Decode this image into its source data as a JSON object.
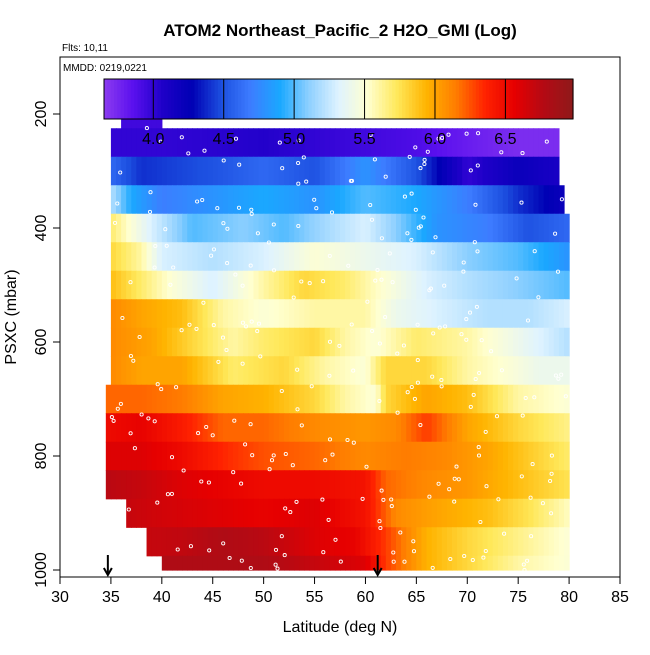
{
  "chart_data": {
    "type": "heatmap",
    "title": "ATOM2 Northeast_Pacific_2 H2O_GMI (Log)",
    "annotations": {
      "flights": "Flts: 10,11",
      "dates": "MMDD: 0219,0221"
    },
    "xlabel": "Latitude (deg N)",
    "ylabel": "PSXC (mbar)",
    "x_range": [
      30,
      85
    ],
    "x_ticks": [
      30,
      35,
      40,
      45,
      50,
      55,
      60,
      65,
      70,
      75,
      80,
      85
    ],
    "y_range": [
      1000,
      100
    ],
    "y_ticks": [
      200,
      400,
      600,
      800,
      1000
    ],
    "colorbar": {
      "range": [
        3.65,
        6.98
      ],
      "ticks": [
        4.0,
        4.5,
        5.0,
        5.5,
        6.0,
        6.5
      ],
      "tick_labels": [
        "4.0",
        "4.5",
        "5.0",
        "5.5",
        "6.0",
        "6.5"
      ]
    },
    "markers": [
      {
        "label": "down arrow",
        "latitude": 34.7
      },
      {
        "label": "down arrow",
        "latitude": 61.2
      }
    ],
    "pressure_bins": [
      {
        "p_min": 175,
        "p_max": 225,
        "lat_start": 36.0,
        "lat_end": 40.0,
        "nodes": [
          [
            36.0,
            3.95
          ],
          [
            40.0,
            3.95
          ]
        ]
      },
      {
        "p_min": 225,
        "p_max": 275,
        "lat_start": 35.0,
        "lat_end": 79.0,
        "nodes": [
          [
            35,
            4.0
          ],
          [
            40,
            4.0
          ],
          [
            50,
            4.05
          ],
          [
            60,
            3.95
          ],
          [
            65,
            3.9
          ],
          [
            70,
            3.8
          ],
          [
            75,
            3.72
          ],
          [
            79,
            3.72
          ]
        ]
      },
      {
        "p_min": 275,
        "p_max": 325,
        "lat_start": 35.0,
        "lat_end": 79.0,
        "nodes": [
          [
            35,
            4.6
          ],
          [
            38,
            4.4
          ],
          [
            45,
            4.5
          ],
          [
            50,
            4.6
          ],
          [
            55,
            4.5
          ],
          [
            60,
            4.8
          ],
          [
            65,
            4.5
          ],
          [
            70,
            4.0
          ],
          [
            75,
            4.2
          ],
          [
            79,
            4.1
          ]
        ]
      },
      {
        "p_min": 325,
        "p_max": 375,
        "lat_start": 35.0,
        "lat_end": 79.5,
        "nodes": [
          [
            35,
            5.2
          ],
          [
            37,
            4.9
          ],
          [
            40,
            4.7
          ],
          [
            50,
            4.9
          ],
          [
            55,
            4.8
          ],
          [
            60,
            5.0
          ],
          [
            65,
            4.9
          ],
          [
            70,
            4.7
          ],
          [
            75,
            4.4
          ],
          [
            79.5,
            4.2
          ]
        ]
      },
      {
        "p_min": 375,
        "p_max": 425,
        "lat_start": 35.0,
        "lat_end": 80.0,
        "nodes": [
          [
            35,
            5.7
          ],
          [
            37,
            5.5
          ],
          [
            39,
            5.3
          ],
          [
            43,
            5.0
          ],
          [
            48,
            5.1
          ],
          [
            52,
            5.0
          ],
          [
            57,
            5.2
          ],
          [
            60,
            5.3
          ],
          [
            63,
            5.1
          ],
          [
            67,
            4.8
          ],
          [
            72,
            4.7
          ],
          [
            76,
            4.5
          ],
          [
            80,
            4.6
          ]
        ]
      },
      {
        "p_min": 425,
        "p_max": 475,
        "lat_start": 35.0,
        "lat_end": 80.0,
        "nodes": [
          [
            35,
            5.8
          ],
          [
            38,
            5.6
          ],
          [
            40,
            5.3
          ],
          [
            45,
            5.2
          ],
          [
            50,
            5.3
          ],
          [
            55,
            5.5
          ],
          [
            60,
            5.4
          ],
          [
            65,
            5.3
          ],
          [
            70,
            5.1
          ],
          [
            75,
            5.0
          ],
          [
            80,
            4.8
          ]
        ]
      },
      {
        "p_min": 475,
        "p_max": 525,
        "lat_start": 35.0,
        "lat_end": 80.0,
        "nodes": [
          [
            35,
            5.9
          ],
          [
            38,
            5.7
          ],
          [
            41,
            5.5
          ],
          [
            45,
            5.3
          ],
          [
            50,
            5.6
          ],
          [
            54,
            5.8
          ],
          [
            58,
            5.7
          ],
          [
            62,
            5.5
          ],
          [
            66,
            5.3
          ],
          [
            70,
            5.2
          ],
          [
            75,
            5.1
          ],
          [
            80,
            5.0
          ]
        ]
      },
      {
        "p_min": 525,
        "p_max": 575,
        "lat_start": 35.0,
        "lat_end": 80.0,
        "nodes": [
          [
            35,
            6.1
          ],
          [
            38,
            6.0
          ],
          [
            42,
            5.9
          ],
          [
            46,
            5.6
          ],
          [
            50,
            5.5
          ],
          [
            55,
            5.6
          ],
          [
            60,
            5.6
          ],
          [
            63,
            5.4
          ],
          [
            67,
            5.3
          ],
          [
            72,
            5.2
          ],
          [
            76,
            5.2
          ],
          [
            80,
            5.3
          ]
        ]
      },
      {
        "p_min": 575,
        "p_max": 625,
        "lat_start": 35.0,
        "lat_end": 80.0,
        "nodes": [
          [
            35,
            6.1
          ],
          [
            39,
            6.0
          ],
          [
            43,
            5.8
          ],
          [
            47,
            5.6
          ],
          [
            50,
            5.7
          ],
          [
            55,
            5.8
          ],
          [
            58,
            5.6
          ],
          [
            61,
            5.5
          ],
          [
            65,
            5.7
          ],
          [
            70,
            5.6
          ],
          [
            75,
            5.4
          ],
          [
            80,
            5.2
          ]
        ]
      },
      {
        "p_min": 625,
        "p_max": 675,
        "lat_start": 35.0,
        "lat_end": 80.0,
        "nodes": [
          [
            35,
            6.1
          ],
          [
            38,
            6.0
          ],
          [
            42,
            6.0
          ],
          [
            47,
            5.7
          ],
          [
            52,
            5.8
          ],
          [
            56,
            5.6
          ],
          [
            60,
            5.5
          ],
          [
            62,
            5.8
          ],
          [
            66,
            5.8
          ],
          [
            70,
            5.6
          ],
          [
            74,
            5.5
          ],
          [
            77,
            5.4
          ],
          [
            80,
            5.4
          ]
        ]
      },
      {
        "p_min": 675,
        "p_max": 725,
        "lat_start": 34.5,
        "lat_end": 80.0,
        "nodes": [
          [
            34.5,
            6.2
          ],
          [
            38,
            6.2
          ],
          [
            42,
            6.15
          ],
          [
            46,
            6.0
          ],
          [
            50,
            5.95
          ],
          [
            55,
            5.8
          ],
          [
            58,
            5.6
          ],
          [
            61,
            5.5
          ],
          [
            62,
            5.8
          ],
          [
            66,
            6.0
          ],
          [
            70,
            5.9
          ],
          [
            75,
            5.6
          ],
          [
            80,
            5.5
          ]
        ]
      },
      {
        "p_min": 725,
        "p_max": 775,
        "lat_start": 34.5,
        "lat_end": 80.0,
        "nodes": [
          [
            34.5,
            6.5
          ],
          [
            38,
            6.55
          ],
          [
            42,
            6.4
          ],
          [
            46,
            6.2
          ],
          [
            50,
            6.2
          ],
          [
            55,
            6.1
          ],
          [
            60,
            6.05
          ],
          [
            63,
            6.1
          ],
          [
            66,
            6.3
          ],
          [
            70,
            6.0
          ],
          [
            75,
            5.8
          ],
          [
            80,
            5.65
          ]
        ]
      },
      {
        "p_min": 775,
        "p_max": 825,
        "lat_start": 34.5,
        "lat_end": 80.0,
        "nodes": [
          [
            34.5,
            6.6
          ],
          [
            38,
            6.6
          ],
          [
            42,
            6.5
          ],
          [
            46,
            6.35
          ],
          [
            50,
            6.25
          ],
          [
            55,
            6.2
          ],
          [
            60,
            6.1
          ],
          [
            64,
            6.15
          ],
          [
            68,
            6.1
          ],
          [
            72,
            6.0
          ],
          [
            76,
            5.85
          ],
          [
            80,
            5.7
          ]
        ]
      },
      {
        "p_min": 825,
        "p_max": 875,
        "lat_start": 34.5,
        "lat_end": 80.0,
        "nodes": [
          [
            34.5,
            6.75
          ],
          [
            38,
            6.7
          ],
          [
            42,
            6.6
          ],
          [
            46,
            6.55
          ],
          [
            50,
            6.5
          ],
          [
            55,
            6.5
          ],
          [
            60,
            6.45
          ],
          [
            62,
            6.2
          ],
          [
            66,
            6.1
          ],
          [
            70,
            6.05
          ],
          [
            75,
            5.9
          ],
          [
            80,
            5.75
          ]
        ]
      },
      {
        "p_min": 875,
        "p_max": 925,
        "lat_start": 36.5,
        "lat_end": 80.0,
        "nodes": [
          [
            36.5,
            6.7
          ],
          [
            40,
            6.65
          ],
          [
            45,
            6.6
          ],
          [
            50,
            6.55
          ],
          [
            55,
            6.6
          ],
          [
            60,
            6.45
          ],
          [
            63,
            6.1
          ],
          [
            67,
            6.0
          ],
          [
            72,
            5.9
          ],
          [
            76,
            5.75
          ],
          [
            80,
            5.55
          ]
        ]
      },
      {
        "p_min": 925,
        "p_max": 975,
        "lat_start": 38.5,
        "lat_end": 80.0,
        "nodes": [
          [
            38.5,
            6.7
          ],
          [
            42,
            6.72
          ],
          [
            46,
            6.8
          ],
          [
            50,
            6.75
          ],
          [
            55,
            6.6
          ],
          [
            59,
            6.55
          ],
          [
            62,
            6.3
          ],
          [
            66,
            5.95
          ],
          [
            70,
            5.8
          ],
          [
            75,
            5.65
          ],
          [
            80,
            5.5
          ]
        ]
      },
      {
        "p_min": 975,
        "p_max": 1000,
        "lat_start": 40.0,
        "lat_end": 80.0,
        "nodes": [
          [
            40,
            6.8
          ],
          [
            45,
            6.8
          ],
          [
            50,
            6.8
          ],
          [
            55,
            6.7
          ],
          [
            60,
            6.6
          ],
          [
            62,
            6.3
          ],
          [
            66,
            5.95
          ],
          [
            70,
            5.8
          ],
          [
            75,
            5.6
          ],
          [
            80,
            5.5
          ]
        ]
      }
    ]
  },
  "colors": {
    "scale": [
      "#8c3cf0",
      "#5a10ee",
      "#1e00c8",
      "#0000b4",
      "#1c4fe0",
      "#3d7cff",
      "#1aa8ff",
      "#8fd0ff",
      "#dff3ff",
      "#ffffd0",
      "#ffe85a",
      "#ffb400",
      "#ff7d00",
      "#ff2200",
      "#e60000",
      "#b40a14",
      "#8e1a1a"
    ],
    "axis": "#000000",
    "marker_outline": "#ffffff"
  }
}
